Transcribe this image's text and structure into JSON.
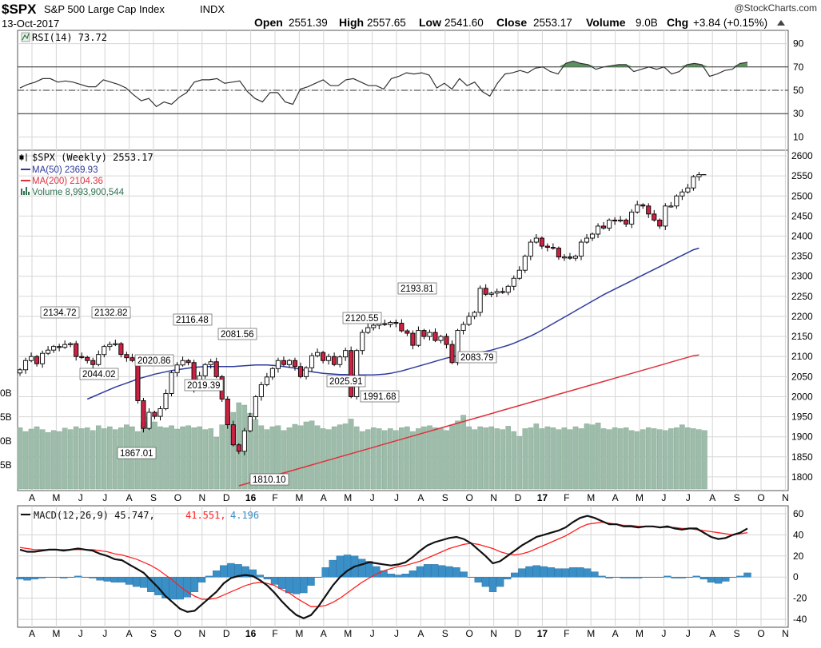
{
  "header": {
    "symbol": "$SPX",
    "name": "S&P 500 Large Cap Index",
    "exchange": "INDX",
    "date": "13-Oct-2017",
    "watermark": "@StockCharts.com",
    "open_label": "Open",
    "open": "2551.39",
    "high_label": "High",
    "high": "2557.65",
    "low_label": "Low",
    "low": "2541.60",
    "close_label": "Close",
    "close": "2553.17",
    "volume_label": "Volume",
    "volume": "9.0B",
    "chg_label": "Chg",
    "chg": "+3.84 (+0.15%)",
    "chg_icon": "triangle-up-icon"
  },
  "colors": {
    "up_candle": "#ffffff",
    "down_candle": "#cc2242",
    "ma50": "#2d3a9c",
    "ma200": "#e0303c",
    "volume": "#9dbdaa",
    "macd": "#111111",
    "signal": "#ff2020",
    "histogram": "#3b8fc7",
    "grid": "#d6d6d6"
  },
  "x_labels": {
    "months": [
      "A",
      "M",
      "J",
      "J",
      "A",
      "S",
      "O",
      "N",
      "D",
      "16",
      "F",
      "M",
      "A",
      "M",
      "J",
      "J",
      "A",
      "S",
      "O",
      "N",
      "D",
      "17",
      "F",
      "M",
      "A",
      "M",
      "J",
      "J",
      "A",
      "S",
      "O",
      "N"
    ]
  },
  "chart_data": [
    {
      "type": "line",
      "panel": "rsi",
      "legend": "RSI(14) 73.72",
      "legend_icon": "rsi-indicator-icon",
      "ylim": [
        0,
        100
      ],
      "yticks": [
        10,
        30,
        50,
        70,
        90
      ],
      "reference_lines": [
        30,
        50,
        70
      ],
      "series": [
        {
          "name": "RSI(14)",
          "values": [
            52,
            55,
            57,
            60,
            60,
            57,
            58,
            57,
            55,
            53,
            53,
            59,
            57,
            55,
            52,
            46,
            41,
            43,
            36,
            40,
            38,
            44,
            48,
            57,
            59,
            59,
            60,
            56,
            57,
            58,
            49,
            43,
            40,
            48,
            48,
            40,
            38,
            51,
            53,
            56,
            59,
            54,
            54,
            59,
            60,
            57,
            54,
            54,
            51,
            60,
            62,
            65,
            64,
            65,
            63,
            52,
            56,
            51,
            60,
            54,
            57,
            49,
            45,
            56,
            64,
            65,
            67,
            65,
            69,
            70,
            66,
            64,
            73,
            75,
            73,
            72,
            68,
            70,
            71,
            72,
            72,
            66,
            68,
            70,
            68,
            70,
            64,
            66,
            72,
            73,
            72,
            62,
            64,
            67,
            68,
            73,
            74
          ]
        }
      ]
    },
    {
      "type": "candlestick",
      "panel": "price",
      "title": "$SPX (Weekly) 2553.17",
      "legend": [
        {
          "name": "MA(50) 2369.93",
          "color": "#2d3a9c"
        },
        {
          "name": "MA(200) 2104.36",
          "color": "#e0303c"
        },
        {
          "name": "Volume 8,993,900,544",
          "color": "#2e7050"
        }
      ],
      "ylim": [
        1770,
        2610
      ],
      "yticks": [
        1800,
        1850,
        1900,
        1950,
        2000,
        2050,
        2100,
        2150,
        2200,
        2250,
        2300,
        2350,
        2400,
        2450,
        2500,
        2550,
        2600
      ],
      "volume_ylim_billions": [
        0,
        21
      ],
      "volume_ticks": [
        {
          "label": "5B",
          "value": 5
        },
        {
          "label": "0B",
          "value": 10
        },
        {
          "label": "5B",
          "value": 15
        },
        {
          "label": "0B",
          "value": 20
        }
      ],
      "close": [
        2067,
        2090,
        2100,
        2082,
        2108,
        2116,
        2125,
        2123,
        2130,
        2132,
        2100,
        2098,
        2090,
        2080,
        2105,
        2125,
        2130,
        2132,
        2105,
        2097,
        2090,
        1990,
        1921,
        1961,
        1951,
        1970,
        2008,
        2060,
        2079,
        2090,
        2085,
        2020,
        2052,
        2080,
        2087,
        2050,
        1994,
        1930,
        1880,
        1864,
        1915,
        1950,
        2000,
        2030,
        2049,
        2070,
        2090,
        2080,
        2090,
        2075,
        2050,
        2072,
        2102,
        2110,
        2090,
        2100,
        2080,
        2099,
        2115,
        2000,
        2115,
        2160,
        2172,
        2178,
        2182,
        2180,
        2185,
        2183,
        2164,
        2158,
        2128,
        2165,
        2150,
        2160,
        2140,
        2150,
        2130,
        2085,
        2165,
        2180,
        2200,
        2210,
        2270,
        2255,
        2258,
        2262,
        2260,
        2275,
        2295,
        2315,
        2350,
        2385,
        2395,
        2375,
        2372,
        2370,
        2348,
        2348,
        2345,
        2350,
        2385,
        2395,
        2405,
        2425,
        2420,
        2440,
        2438,
        2440,
        2430,
        2460,
        2478,
        2475,
        2455,
        2440,
        2425,
        2475,
        2475,
        2500,
        2510,
        2520,
        2548,
        2553
      ],
      "series": [
        {
          "name": "MA(50)",
          "values": [
            1994,
            2000,
            2006,
            2012,
            2018,
            2024,
            2029,
            2034,
            2039,
            2044,
            2048,
            2052,
            2056,
            2059,
            2062,
            2065,
            2067,
            2069,
            2071,
            2073,
            2074,
            2075,
            2075,
            2075,
            2075,
            2075,
            2075,
            2076,
            2077,
            2078,
            2079,
            2079,
            2079,
            2078,
            2077,
            2075,
            2073,
            2071,
            2068,
            2065,
            2062,
            2060,
            2058,
            2057,
            2056,
            2055,
            2055,
            2054,
            2054,
            2054,
            2054,
            2054,
            2055,
            2056,
            2058,
            2061,
            2064,
            2068,
            2072,
            2076,
            2080,
            2084,
            2088,
            2092,
            2096,
            2099,
            2102,
            2105,
            2107,
            2109,
            2111,
            2113,
            2116,
            2120,
            2124,
            2128,
            2133,
            2139,
            2145,
            2151,
            2158,
            2166,
            2174,
            2182,
            2190,
            2198,
            2206,
            2214,
            2222,
            2230,
            2238,
            2246,
            2254,
            2261,
            2268,
            2275,
            2282,
            2289,
            2296,
            2303,
            2310,
            2317,
            2324,
            2331,
            2338,
            2345,
            2352,
            2359,
            2366,
            2370
          ]
        },
        {
          "name": "MA(200)",
          "values": [
            1778,
            1782,
            1786,
            1790,
            1794,
            1798,
            1802,
            1806,
            1810,
            1814,
            1818,
            1822,
            1826,
            1830,
            1834,
            1838,
            1842,
            1846,
            1850,
            1854,
            1858,
            1862,
            1866,
            1870,
            1874,
            1878,
            1882,
            1886,
            1890,
            1894,
            1898,
            1902,
            1906,
            1910,
            1914,
            1918,
            1922,
            1926,
            1930,
            1934,
            1938,
            1942,
            1946,
            1950,
            1954,
            1958,
            1962,
            1966,
            1970,
            1974,
            1978,
            1982,
            1986,
            1990,
            1994,
            1998,
            2002,
            2006,
            2010,
            2014,
            2018,
            2022,
            2026,
            2030,
            2034,
            2038,
            2042,
            2046,
            2050,
            2054,
            2058,
            2062,
            2066,
            2070,
            2074,
            2078,
            2082,
            2086,
            2090,
            2094,
            2098,
            2102,
            2104
          ]
        },
        {
          "name": "Volume",
          "values_billions": [
            12.8,
            12,
            12.5,
            13,
            12.4,
            11.8,
            12.2,
            12,
            12.7,
            12.4,
            13,
            12.6,
            12.8,
            12.2,
            13.2,
            12.6,
            13,
            12.4,
            12.8,
            13.4,
            13,
            12,
            14,
            15,
            14,
            13,
            12.8,
            13.2,
            12.5,
            13,
            13.2,
            12.8,
            13,
            12.4,
            12.6,
            10.8,
            13.4,
            15,
            16,
            18,
            17.5,
            15.8,
            14.5,
            13.2,
            12.4,
            13,
            13.2,
            12.2,
            12.8,
            13.5,
            13.2,
            14,
            14.2,
            13.2,
            12.6,
            12.4,
            13,
            13.4,
            13.6,
            14.6,
            13,
            12,
            12.4,
            12.8,
            12.6,
            12.2,
            12.6,
            12.2,
            12.8,
            13,
            12,
            12.6,
            13,
            13.2,
            12.8,
            12.6,
            12.2,
            13.4,
            14.2,
            15.4,
            13,
            12.4,
            13,
            12.8,
            13,
            12.6,
            12.4,
            13.1,
            12,
            11,
            12.6,
            12.8,
            13.6,
            12.6,
            13,
            12.8,
            12.4,
            12.8,
            12.4,
            13,
            12.6,
            13.6,
            13.4,
            13.8,
            12.6,
            12.4,
            12.8,
            12.6,
            12.8,
            12.2,
            12,
            12.4,
            12.8,
            12.6,
            12.4,
            12.2,
            12.6,
            12.8,
            13.4,
            12.8,
            12.6,
            12.4,
            12.2
          ]
        }
      ],
      "annotations": [
        {
          "label": "2134.72",
          "value": 2134.72
        },
        {
          "label": "2132.82",
          "value": 2132.82
        },
        {
          "label": "2044.02",
          "value": 2044.02
        },
        {
          "label": "2020.86",
          "value": 2020.86
        },
        {
          "label": "2116.48",
          "value": 2116.48
        },
        {
          "label": "2019.39",
          "value": 2019.39
        },
        {
          "label": "2081.56",
          "value": 2081.56
        },
        {
          "label": "1867.01",
          "value": 1867.01
        },
        {
          "label": "1810.10",
          "value": 1810.1
        },
        {
          "label": "2025.91",
          "value": 2025.91
        },
        {
          "label": "2120.55",
          "value": 2120.55
        },
        {
          "label": "1991.68",
          "value": 1991.68
        },
        {
          "label": "2193.81",
          "value": 2193.81
        },
        {
          "label": "2083.79",
          "value": 2083.79
        }
      ]
    },
    {
      "type": "line",
      "panel": "macd",
      "legend": [
        {
          "text": "MACD(12,26,9) 45.747,",
          "color": "#111111"
        },
        {
          "text": "41.551,",
          "color": "#ff2020"
        },
        {
          "text": "4.196",
          "color": "#3b8fc7"
        }
      ],
      "legend_icon": "macd-line-icon",
      "ylim": [
        -46,
        66
      ],
      "yticks": [
        -40,
        -20,
        0,
        20,
        40,
        60
      ],
      "series": [
        {
          "name": "MACD",
          "values": [
            26,
            24,
            24,
            25,
            26,
            26,
            25,
            26,
            27,
            26,
            25,
            22,
            20,
            17,
            16,
            12,
            8,
            4,
            -3,
            -10,
            -18,
            -24,
            -30,
            -33,
            -32,
            -26,
            -20,
            -14,
            -6,
            -1,
            1,
            2,
            1,
            -3,
            -8,
            -15,
            -23,
            -30,
            -36,
            -39,
            -36,
            -28,
            -18,
            -8,
            0,
            6,
            10,
            12,
            14,
            13,
            12,
            11,
            12,
            14,
            19,
            25,
            30,
            33,
            35,
            37,
            38,
            36,
            32,
            26,
            20,
            13,
            15,
            20,
            25,
            30,
            34,
            38,
            40,
            42,
            44,
            47,
            52,
            56,
            58,
            56,
            53,
            50,
            50,
            48,
            48,
            47,
            48,
            48,
            47,
            48,
            46,
            45,
            46,
            46,
            42,
            38,
            36,
            37,
            40,
            42,
            46
          ]
        },
        {
          "name": "Signal",
          "values": [
            28,
            27,
            26,
            26,
            26,
            26,
            26,
            26,
            26,
            26,
            26,
            25,
            24,
            22,
            21,
            19,
            17,
            14,
            11,
            7,
            2,
            -3,
            -9,
            -14,
            -18,
            -21,
            -21,
            -20,
            -17,
            -14,
            -11,
            -8,
            -6,
            -5,
            -6,
            -8,
            -12,
            -15,
            -20,
            -24,
            -28,
            -28,
            -27,
            -24,
            -20,
            -15,
            -10,
            -5,
            -1,
            3,
            6,
            8,
            10,
            11,
            13,
            15,
            18,
            21,
            24,
            27,
            29,
            31,
            32,
            31,
            29,
            27,
            24,
            22,
            21,
            22,
            24,
            27,
            30,
            33,
            36,
            39,
            43,
            47,
            50,
            51,
            52,
            51,
            50,
            49,
            49,
            48,
            48,
            48,
            47,
            47,
            47,
            46,
            46,
            45,
            44,
            43,
            42,
            41,
            40,
            41,
            42
          ]
        },
        {
          "name": "Histogram",
          "values": [
            -2,
            -3,
            -2,
            -1,
            0,
            0,
            -1,
            0,
            1,
            0,
            -1,
            -3,
            -4,
            -5,
            -5,
            -7,
            -9,
            -10,
            -14,
            -17,
            -20,
            -21,
            -21,
            -19,
            -14,
            -5,
            1,
            6,
            11,
            13,
            12,
            10,
            7,
            2,
            -2,
            -7,
            -11,
            -15,
            -16,
            -15,
            -8,
            0,
            9,
            16,
            20,
            21,
            20,
            17,
            15,
            10,
            6,
            3,
            2,
            3,
            6,
            10,
            12,
            12,
            11,
            10,
            9,
            5,
            0,
            -5,
            -9,
            -14,
            -9,
            -2,
            4,
            8,
            10,
            11,
            10,
            9,
            8,
            8,
            9,
            9,
            8,
            5,
            1,
            -1,
            0,
            -1,
            -1,
            -1,
            0,
            0,
            0,
            1,
            -1,
            -1,
            0,
            1,
            -2,
            -5,
            -6,
            -4,
            0,
            1,
            4
          ]
        }
      ]
    }
  ]
}
